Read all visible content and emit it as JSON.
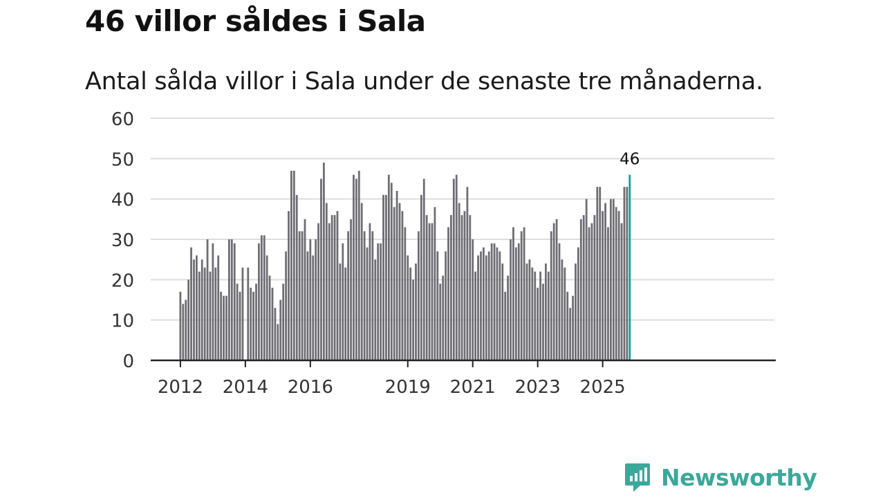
{
  "title": "46 villor såldes i Sala",
  "subtitle": "Antal sålda villor i Sala under de senaste tre månaderna.",
  "brand": {
    "name": "Newsworthy",
    "logo_text": "Newsworthy"
  },
  "colors": {
    "bar": "#6e6d73",
    "highlight": "#139c98",
    "grid": "#dedede",
    "axis": "#222222",
    "brand": "#3aa89a"
  },
  "chart_data": {
    "type": "bar",
    "title": "46 villor såldes i Sala",
    "xlabel": "",
    "ylabel": "",
    "ylim": [
      0,
      60
    ],
    "yticks": [
      0,
      10,
      20,
      30,
      40,
      50,
      60
    ],
    "ytick_labels": [
      "0",
      "10",
      "20",
      "30",
      "40",
      "50",
      "60"
    ],
    "xtick_labels": [
      "2012",
      "2014",
      "2016",
      "2019",
      "2021",
      "2023",
      "2025"
    ],
    "xtick_positions": [
      0,
      24,
      48,
      84,
      108,
      132,
      156
    ],
    "start": "2012-01",
    "frequency": "monthly",
    "grid": true,
    "highlight_label": "46",
    "values": [
      17,
      14,
      15,
      20,
      28,
      25,
      26,
      22,
      25,
      23,
      30,
      22,
      29,
      23,
      26,
      17,
      16,
      16,
      30,
      30,
      29,
      19,
      17,
      23,
      0,
      23,
      18,
      17,
      19,
      29,
      31,
      31,
      26,
      21,
      18,
      13,
      9,
      15,
      19,
      27,
      37,
      47,
      47,
      41,
      32,
      32,
      35,
      27,
      30,
      26,
      30,
      34,
      45,
      49,
      39,
      34,
      36,
      36,
      37,
      24,
      29,
      23,
      32,
      35,
      46,
      45,
      47,
      39,
      32,
      28,
      34,
      32,
      25,
      29,
      29,
      41,
      41,
      46,
      44,
      38,
      42,
      39,
      37,
      33,
      26,
      23,
      20,
      24,
      32,
      41,
      45,
      36,
      34,
      34,
      38,
      27,
      19,
      21,
      27,
      33,
      36,
      45,
      46,
      39,
      36,
      37,
      43,
      36,
      30,
      22,
      26,
      27,
      28,
      26,
      27,
      29,
      29,
      28,
      27,
      24,
      17,
      21,
      30,
      33,
      28,
      29,
      32,
      33,
      24,
      25,
      23,
      22,
      18,
      22,
      19,
      24,
      22,
      32,
      34,
      35,
      29,
      25,
      23,
      17,
      13,
      16,
      24,
      28,
      35,
      36,
      40,
      33,
      34,
      36,
      43,
      43,
      37,
      39,
      33,
      40,
      40,
      38,
      37,
      34,
      43,
      43,
      46
    ]
  }
}
